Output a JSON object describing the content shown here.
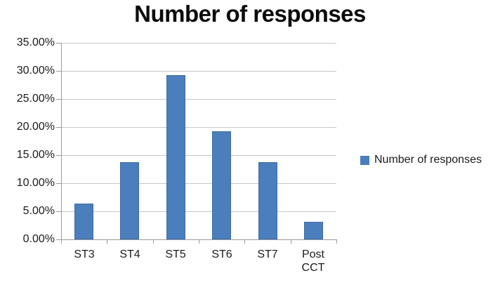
{
  "title": "Number of responses",
  "legend": {
    "label": "Number of responses",
    "swatch_color": "#4a7ebc"
  },
  "colors": {
    "bar_fill": "#4a7ebc",
    "bar_border": "#3e6ca8",
    "gridline": "#c6c6c6",
    "axis": "#9a9a9a",
    "text": "#1a1a1a"
  },
  "chart_data": {
    "type": "bar",
    "title": "Number of responses",
    "categories": [
      "ST3",
      "ST4",
      "ST5",
      "ST6",
      "ST7",
      "Post CCT"
    ],
    "series": [
      {
        "name": "Number of responses",
        "values": [
          6.4,
          13.7,
          29.2,
          19.3,
          13.7,
          3.1
        ]
      }
    ],
    "xlabel": "",
    "ylabel": "",
    "ylim": [
      0,
      35
    ],
    "ytick_step": 5,
    "ytick_labels": [
      "0.00%",
      "5.00%",
      "10.00%",
      "15.00%",
      "20.00%",
      "25.00%",
      "30.00%",
      "35.00%"
    ],
    "grid": true,
    "legend_position": "right"
  }
}
